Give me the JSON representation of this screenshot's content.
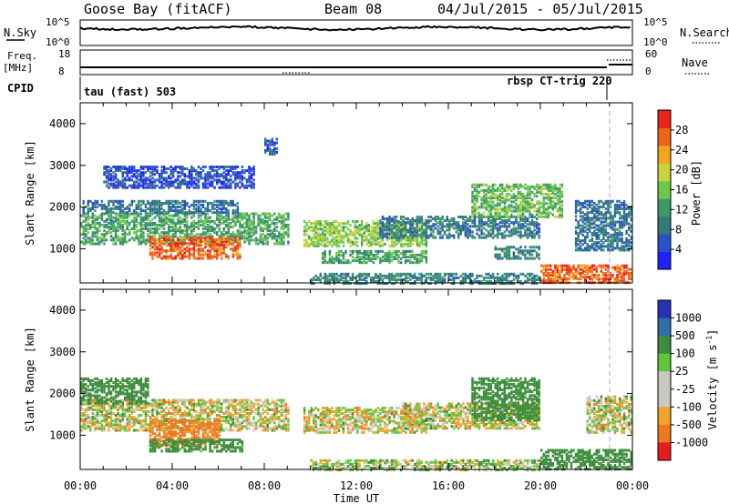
{
  "header": {
    "station": "Goose Bay (fitACF)",
    "beam": "Beam 08",
    "date_range": "04/Jul/2015 - 05/Jul/2015"
  },
  "status_panels": {
    "nsky_label": "N.Sky",
    "nsky_ticks": [
      "10^5",
      "10^0"
    ],
    "nsearch_label": "N.Search",
    "nsearch_ticks": [
      "10^5",
      "10^0"
    ],
    "freq_label": "Freq.",
    "freq_unit": "[MHz]",
    "freq_ticks": [
      "18",
      "8"
    ],
    "nave_label": "Nave",
    "nave_ticks": [
      "60",
      "0"
    ],
    "cpid_label": "CPID",
    "cpid_left": "tau (fast) 503",
    "cpid_right": "rbsp CT-trig 220"
  },
  "x_axis": {
    "label": "Time UT",
    "ticks": [
      "00:00",
      "04:00",
      "08:00",
      "12:00",
      "16:00",
      "20:00",
      "00:00"
    ]
  },
  "colors": {
    "power": [
      "#1f22ff",
      "#2a52c8",
      "#357a7a",
      "#3c9a6a",
      "#6cc84a",
      "#c8d23c",
      "#f5a21e",
      "#f06418",
      "#e8231a"
    ],
    "velocity": [
      "#e81c1c",
      "#f0781e",
      "#f2a32a",
      "#c8c8c2",
      "#c8c8c2",
      "#5ec83a",
      "#3c8c3c",
      "#2f6fa8",
      "#2832b4"
    ]
  },
  "chart_data": [
    {
      "type": "heatmap",
      "name": "power",
      "ylabel": "Slant Range [km]",
      "xlabel": "Time UT",
      "xlim_hours": [
        0,
        24
      ],
      "ylim": [
        180,
        4500
      ],
      "y_ticks": [
        1000,
        2000,
        3000,
        4000
      ],
      "colorbar": {
        "label": "Power [dB]",
        "ticks": [
          4,
          8,
          12,
          16,
          20,
          24,
          28
        ],
        "range": [
          0,
          32
        ]
      },
      "data_gap_hours": [
        9.1,
        9.6
      ],
      "echo_regions": [
        {
          "t0": 0.0,
          "t1": 9.0,
          "r0": 1150,
          "r1": 1900,
          "value": 13
        },
        {
          "t0": 0.1,
          "t1": 6.8,
          "r0": 1900,
          "r1": 2200,
          "value": 8
        },
        {
          "t0": 3.0,
          "t1": 6.9,
          "r0": 800,
          "r1": 1300,
          "value": 27
        },
        {
          "t0": 1.0,
          "t1": 7.5,
          "r0": 2500,
          "r1": 3000,
          "value": 5
        },
        {
          "t0": 9.7,
          "t1": 15.0,
          "r0": 1100,
          "r1": 1700,
          "value": 17
        },
        {
          "t0": 10.5,
          "t1": 15.0,
          "r0": 700,
          "r1": 1000,
          "value": 13
        },
        {
          "t0": 13.0,
          "t1": 20.0,
          "r0": 1300,
          "r1": 1800,
          "value": 9
        },
        {
          "t0": 17.0,
          "t1": 21.0,
          "r0": 1800,
          "r1": 2600,
          "value": 15
        },
        {
          "t0": 18.0,
          "t1": 20.0,
          "r0": 800,
          "r1": 1100,
          "value": 10
        },
        {
          "t0": 20.0,
          "t1": 24.0,
          "r0": 220,
          "r1": 650,
          "value": 27
        },
        {
          "t0": 10.0,
          "t1": 20.0,
          "r0": 200,
          "r1": 450,
          "value": 10
        },
        {
          "t0": 21.5,
          "t1": 24.0,
          "r0": 1000,
          "r1": 2200,
          "value": 8
        },
        {
          "t0": 8.0,
          "t1": 8.5,
          "r0": 3300,
          "r1": 3700,
          "value": 6
        }
      ]
    },
    {
      "type": "heatmap",
      "name": "velocity",
      "ylabel": "Slant Range [km]",
      "xlabel": "Time UT",
      "xlim_hours": [
        0,
        24
      ],
      "ylim": [
        180,
        4500
      ],
      "y_ticks": [
        1000,
        2000,
        3000,
        4000
      ],
      "colorbar": {
        "label": "Velocity [m s^-1]",
        "ticks": [
          1000,
          500,
          100,
          25,
          -25,
          -100,
          -500,
          -1000
        ],
        "range": [
          -1000,
          1000
        ]
      },
      "data_gap_hours": [
        9.1,
        9.6
      ],
      "echo_regions": [
        {
          "t0": 0.0,
          "t1": 9.0,
          "r0": 1150,
          "r1": 1900,
          "value": 0
        },
        {
          "t0": 0.0,
          "t1": 3.0,
          "r0": 1800,
          "r1": 2400,
          "value": 300
        },
        {
          "t0": 3.0,
          "t1": 6.0,
          "r0": 800,
          "r1": 1400,
          "value": -200
        },
        {
          "t0": 3.0,
          "t1": 7.0,
          "r0": 650,
          "r1": 950,
          "value": 200
        },
        {
          "t0": 9.7,
          "t1": 15.0,
          "r0": 1100,
          "r1": 1700,
          "value": 0
        },
        {
          "t0": 14.0,
          "t1": 20.0,
          "r0": 1200,
          "r1": 1800,
          "value": 0
        },
        {
          "t0": 17.0,
          "t1": 20.0,
          "r0": 1400,
          "r1": 2400,
          "value": 300
        },
        {
          "t0": 20.0,
          "t1": 24.0,
          "r0": 220,
          "r1": 700,
          "value": 300
        },
        {
          "t0": 10.0,
          "t1": 20.0,
          "r0": 200,
          "r1": 450,
          "value": 50
        },
        {
          "t0": 22.0,
          "t1": 24.0,
          "r0": 1100,
          "r1": 2000,
          "value": 0
        }
      ]
    }
  ]
}
